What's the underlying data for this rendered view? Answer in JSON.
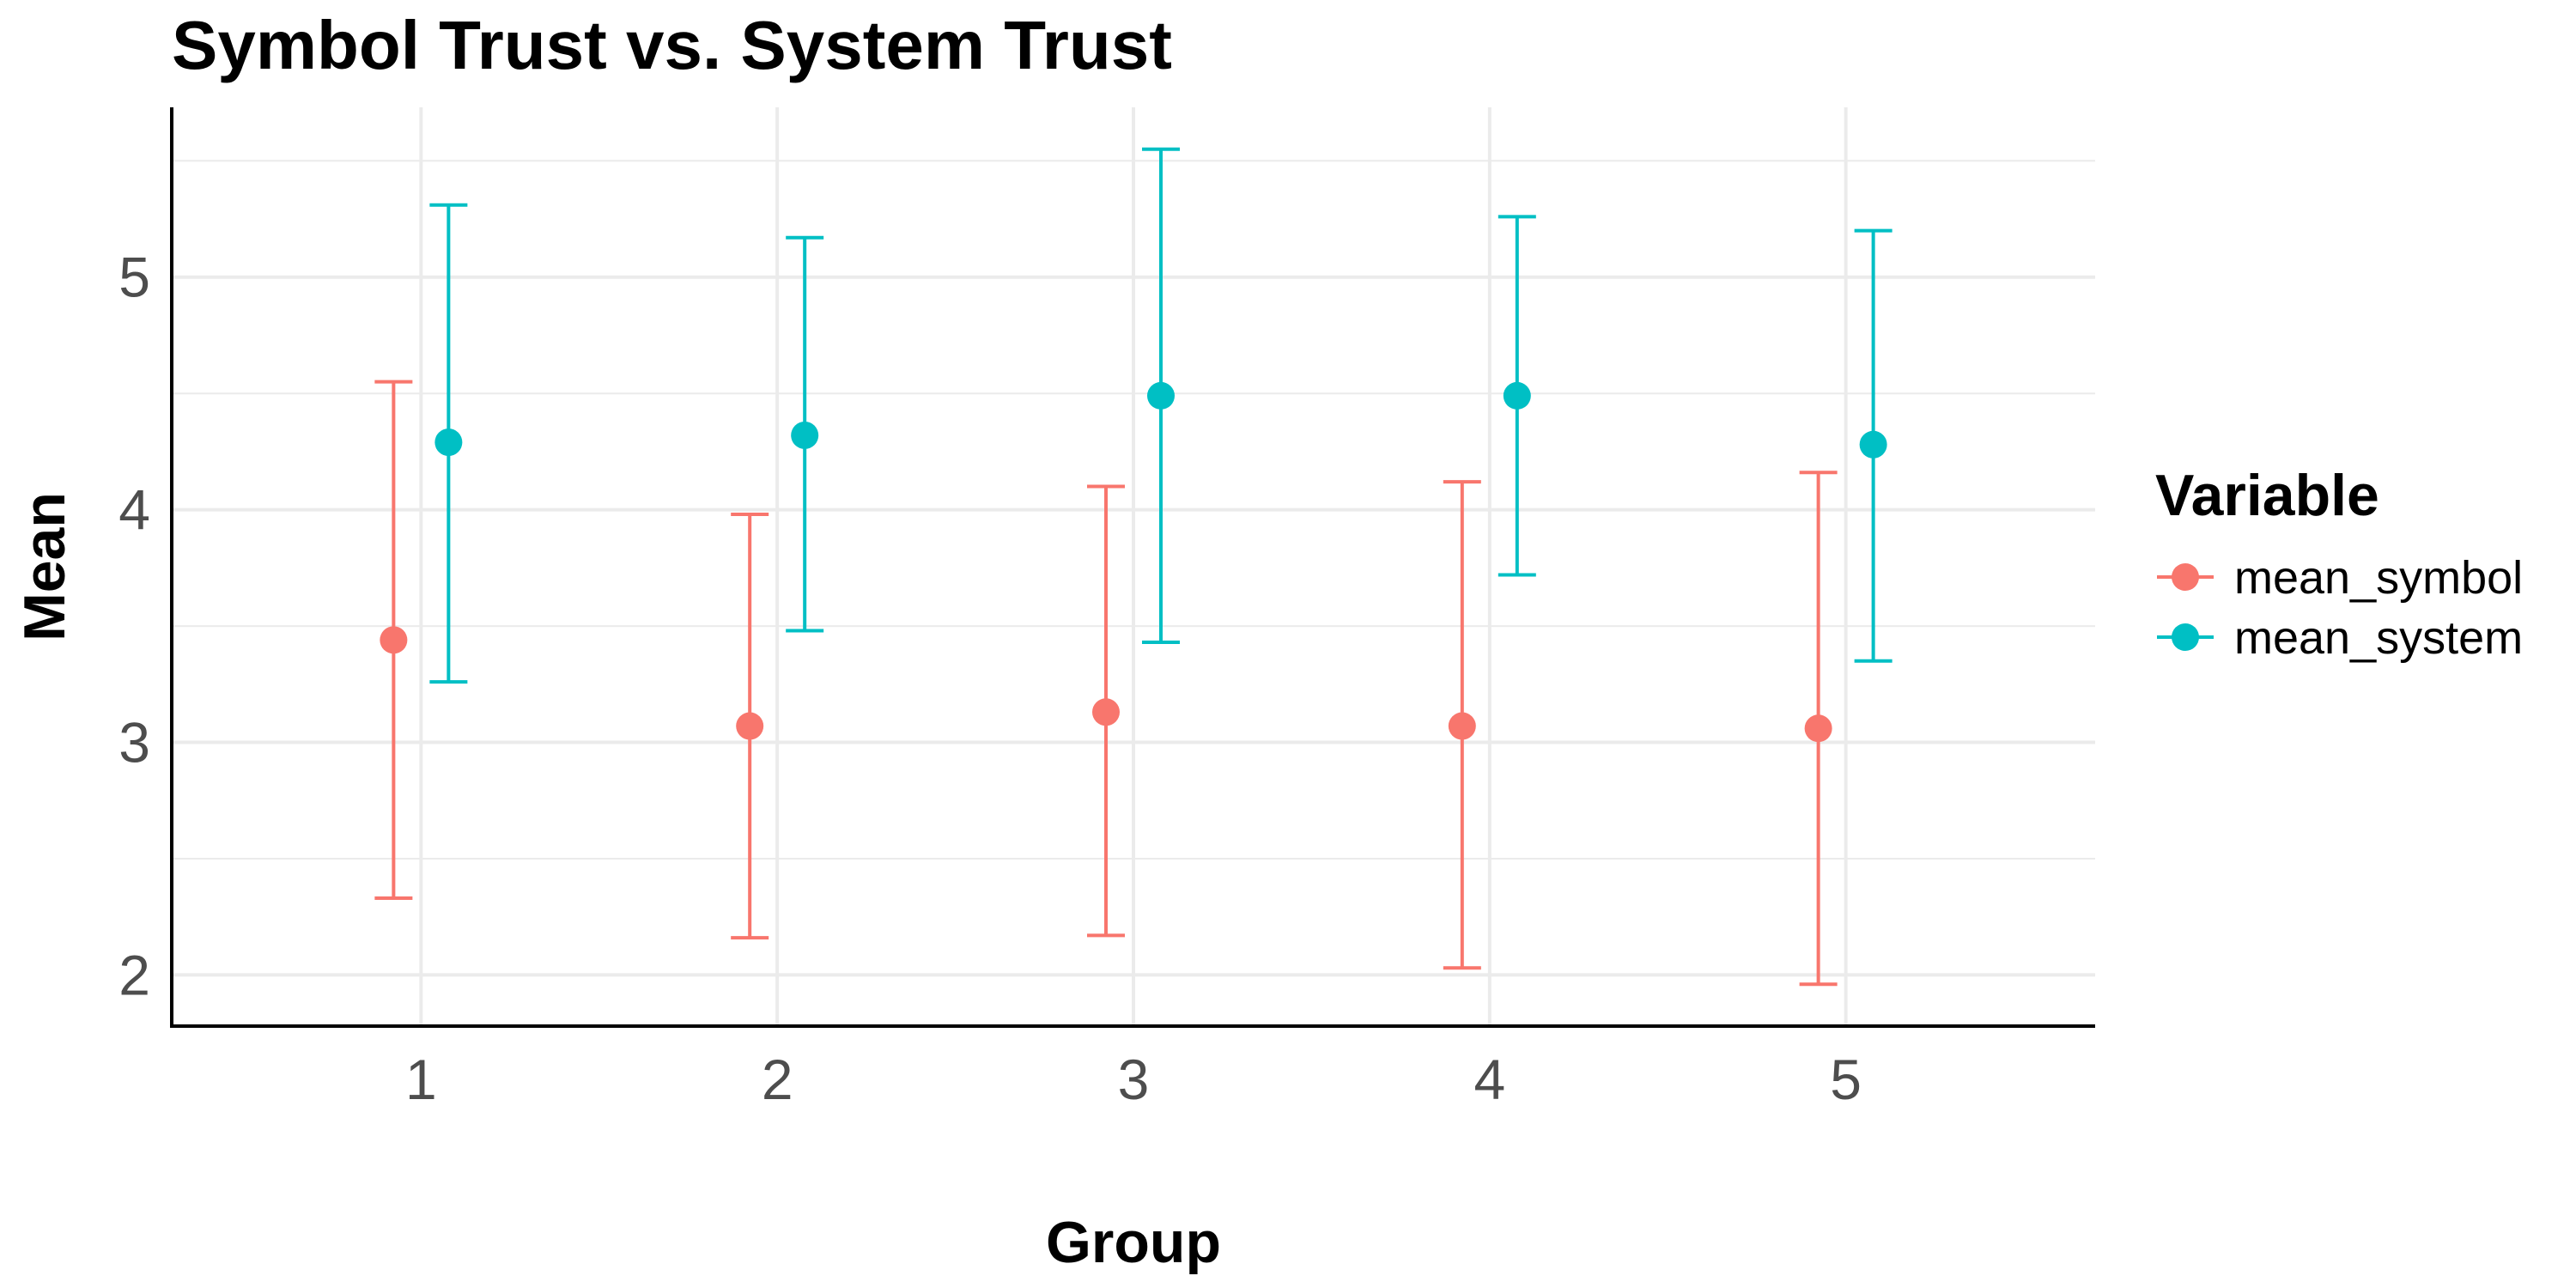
{
  "chart_data": {
    "type": "scatter",
    "title": "Symbol Trust vs. System Trust",
    "xlabel": "Group",
    "ylabel": "Mean",
    "categories": [
      "1",
      "2",
      "3",
      "4",
      "5"
    ],
    "ylim": [
      1.78,
      5.73
    ],
    "yticks": [
      "2",
      "3",
      "4",
      "5"
    ],
    "grid": true,
    "legend": {
      "title": "Variable",
      "position": "right"
    },
    "series": [
      {
        "name": "mean_symbol",
        "color": "#F8766D",
        "values": [
          3.44,
          3.07,
          3.13,
          3.07,
          3.06
        ],
        "lower": [
          2.33,
          2.16,
          2.17,
          2.03,
          1.96
        ],
        "upper": [
          4.55,
          3.98,
          4.1,
          4.12,
          4.16
        ]
      },
      {
        "name": "mean_system",
        "color": "#00BFC4",
        "values": [
          4.29,
          4.32,
          4.49,
          4.49,
          4.28
        ],
        "lower": [
          3.26,
          3.48,
          3.43,
          3.72,
          3.35
        ],
        "upper": [
          5.31,
          5.17,
          5.55,
          5.26,
          5.2
        ]
      }
    ]
  }
}
